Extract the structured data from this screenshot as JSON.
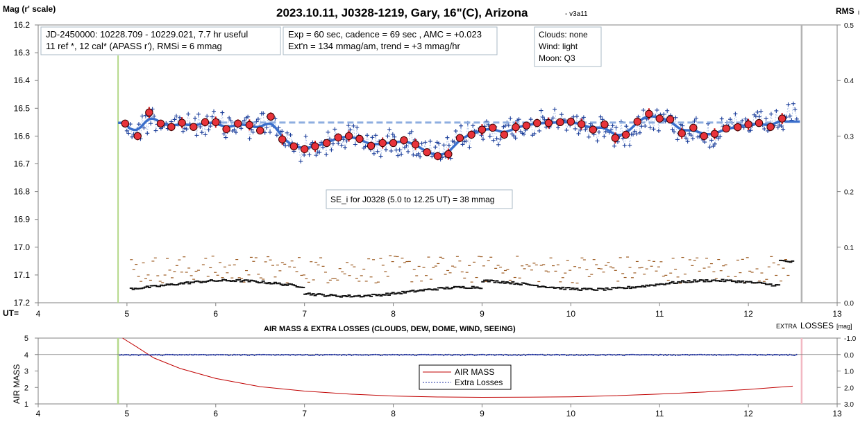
{
  "chart_data": [
    {
      "type": "scatter",
      "title": "2023.10.11, J0328-1219, Gary, 16\"(C), Arizona",
      "version_tag": "- v3a11",
      "ylabel": "Mag (r' scale)",
      "y2label": "RMS",
      "y2label_sub": "i",
      "x_axis_marker": "UT=",
      "xlim": [
        4,
        13
      ],
      "ylim": [
        16.2,
        17.2
      ],
      "y_inverted": true,
      "y2lim": [
        0.0,
        0.5
      ],
      "x_ticks": [
        "4",
        "5",
        "6",
        "7",
        "8",
        "9",
        "10",
        "11",
        "12",
        "13"
      ],
      "y_ticks": [
        "16.2",
        "16.3",
        "16.4",
        "16.5",
        "16.6",
        "16.7",
        "16.8",
        "16.9",
        "17.0",
        "17.1",
        "17.2"
      ],
      "y2_ticks": [
        "0.5",
        "0.4",
        "0.3",
        "0.2",
        "0.1",
        "0.0"
      ],
      "info_box_1": [
        "JD-2450000: 10228.709 - 10229.021, 7.7 hr useful",
        "11 ref *, 12 cal*  (APASS r'), RMSi = 6 mmag"
      ],
      "info_box_2": [
        "Exp = 60 sec, cadence = 69 sec , AMC = +0.023",
        "Ext'n = 134 mmag/am, trend = +3 mmag/hr"
      ],
      "info_box_3": [
        "Clouds: none",
        "Wind:   light",
        "Moon:  Q3"
      ],
      "annotation": "SE_i for J0328 (5.0 to 12.25 UT) = 38 mmag",
      "start_marker_x": 4.9,
      "end_marker_x": 12.6,
      "reference_level": 16.55,
      "binned_points": {
        "x": [
          4.98,
          5.12,
          5.25,
          5.38,
          5.5,
          5.62,
          5.75,
          5.88,
          6.0,
          6.12,
          6.25,
          6.38,
          6.5,
          6.62,
          6.75,
          6.88,
          7.0,
          7.12,
          7.25,
          7.38,
          7.5,
          7.62,
          7.75,
          7.88,
          8.0,
          8.12,
          8.25,
          8.38,
          8.5,
          8.62,
          8.75,
          8.88,
          9.0,
          9.12,
          9.25,
          9.38,
          9.5,
          9.62,
          9.75,
          9.88,
          10.0,
          10.12,
          10.25,
          10.38,
          10.5,
          10.62,
          10.75,
          10.88,
          11.0,
          11.12,
          11.25,
          11.38,
          11.5,
          11.62,
          11.75,
          11.88,
          12.0,
          12.12,
          12.25,
          12.38
        ],
        "y": [
          16.555,
          16.6,
          16.515,
          16.555,
          16.567,
          16.552,
          16.567,
          16.55,
          16.55,
          16.575,
          16.555,
          16.56,
          16.58,
          16.53,
          16.612,
          16.637,
          16.647,
          16.637,
          16.625,
          16.605,
          16.6,
          16.61,
          16.635,
          16.625,
          16.625,
          16.615,
          16.63,
          16.658,
          16.672,
          16.665,
          16.607,
          16.595,
          16.577,
          16.57,
          16.595,
          16.568,
          16.562,
          16.553,
          16.553,
          16.55,
          16.548,
          16.557,
          16.577,
          16.558,
          16.607,
          16.595,
          16.548,
          16.52,
          16.537,
          16.54,
          16.59,
          16.57,
          16.6,
          16.592,
          16.573,
          16.568,
          16.558,
          16.553,
          16.567,
          16.537
        ]
      },
      "series": [
        {
          "name": "Individual measurements",
          "marker": "plus",
          "color": "#1c3f9a"
        },
        {
          "name": "Binned average",
          "marker": "circle",
          "color": "#e02020"
        },
        {
          "name": "Smoothed fit",
          "style": "line",
          "color": "#3a6fcc"
        },
        {
          "name": "Reference level",
          "style": "dashed",
          "color": "#8eaee0"
        },
        {
          "name": "RMS (binned)",
          "marker": "dash",
          "color": "#111111",
          "axis": "y2"
        },
        {
          "name": "RMS (individual)",
          "marker": "dash",
          "color": "#9c5a20",
          "axis": "y2"
        }
      ],
      "grid": false
    },
    {
      "type": "line",
      "title": "AIR MASS & EXTRA LOSSES (CLOUDS, DEW, DOME, WIND, SEEING)",
      "ylabel": "AIR MASS",
      "y2label": "EXTRA",
      "y2label_big": "LOSSES",
      "y2label_unit": "[mag]",
      "xlim": [
        4,
        13
      ],
      "ylim": [
        1,
        5
      ],
      "y2lim": [
        -1.0,
        3.0
      ],
      "x_ticks": [
        "4",
        "5",
        "6",
        "7",
        "8",
        "9",
        "10",
        "11",
        "12",
        "13"
      ],
      "y_ticks": [
        "5",
        "4",
        "3",
        "2",
        "1"
      ],
      "y2_ticks": [
        "-1.0",
        "0.0",
        "1.0",
        "2.0",
        "3.0"
      ],
      "start_marker_x": 4.9,
      "end_marker_x": 12.6,
      "legend_position": "center",
      "series": [
        {
          "name": "AIR MASS",
          "color": "#c00000",
          "x": [
            4.95,
            5.1,
            5.3,
            5.6,
            6.0,
            6.5,
            7.0,
            7.5,
            8.0,
            8.5,
            9.0,
            9.5,
            10.0,
            10.5,
            11.0,
            11.5,
            12.0,
            12.3,
            12.5
          ],
          "values": [
            5.0,
            4.5,
            3.8,
            3.15,
            2.55,
            2.05,
            1.78,
            1.6,
            1.48,
            1.42,
            1.4,
            1.41,
            1.43,
            1.5,
            1.6,
            1.72,
            1.88,
            2.0,
            2.08
          ]
        },
        {
          "name": "Extra Losses",
          "color": "#1c2fa0",
          "style": "dashed-dots",
          "level": 0.0
        }
      ],
      "grid": false
    }
  ]
}
